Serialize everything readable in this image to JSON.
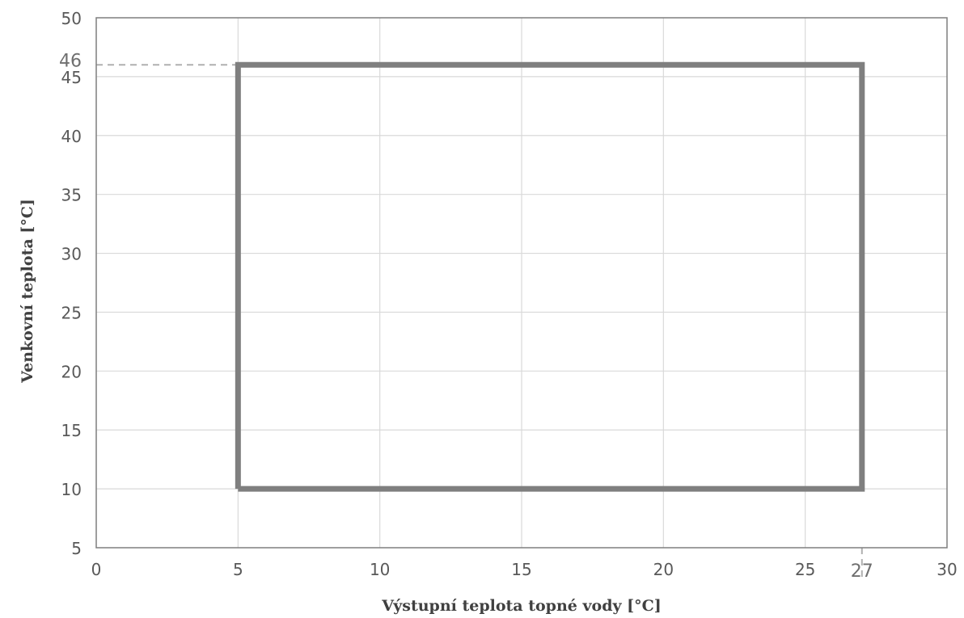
{
  "chart_data": {
    "type": "line",
    "xlabel": "Výstupní teplota topné vody [°C]",
    "ylabel": "Venkovní teplota [°C]",
    "xlim": [
      0,
      30
    ],
    "ylim": [
      5,
      50
    ],
    "x_ticks": [
      0,
      5,
      10,
      15,
      20,
      25,
      30
    ],
    "y_ticks": [
      5,
      10,
      15,
      20,
      25,
      30,
      35,
      40,
      45,
      50
    ],
    "grid": true,
    "series": [
      {
        "x": [
          5,
          27,
          27,
          5,
          5
        ],
        "y": [
          10,
          10,
          46,
          46,
          10
        ],
        "color": "#7f7f7f"
      }
    ],
    "reference_markers": [
      {
        "axis": "y",
        "value": 46,
        "label": "46",
        "from_x": 0,
        "to_x": 5
      },
      {
        "axis": "x",
        "value": 27,
        "label": "27",
        "from_y": 5,
        "to_y": 10
      }
    ],
    "colors": {
      "grid": "#d9d9d9",
      "series": "#7f7f7f",
      "dashed": "#b0b0b0"
    }
  }
}
